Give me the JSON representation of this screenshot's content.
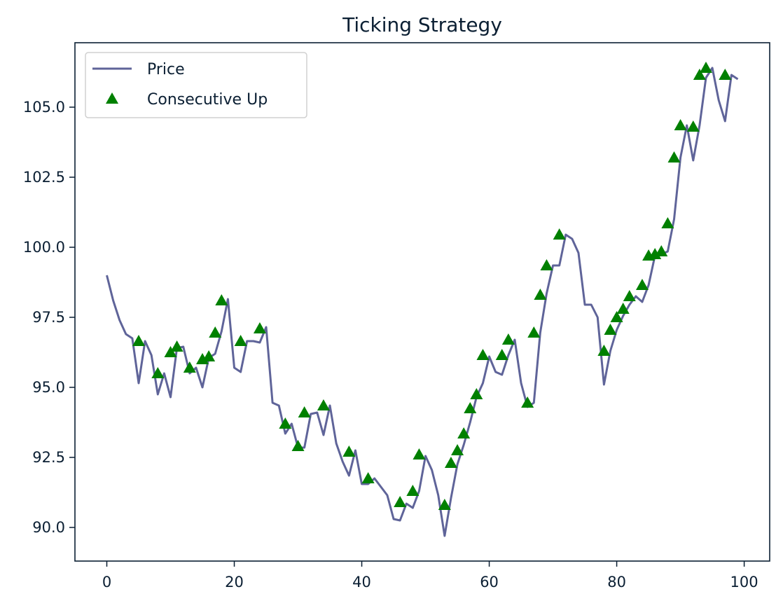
{
  "chart_data": {
    "type": "line",
    "title": "Ticking Strategy",
    "xlabel": "",
    "ylabel": "",
    "xlim": [
      -5,
      104
    ],
    "ylim": [
      88.8,
      107.3
    ],
    "xticks": [
      0,
      20,
      40,
      60,
      80,
      100
    ],
    "yticks": [
      90.0,
      92.5,
      95.0,
      97.5,
      100.0,
      102.5,
      105.0
    ],
    "grid": false,
    "legend_position": "top-left",
    "colors": {
      "price_line": "#5f6499",
      "marker": "#008000",
      "axis": "#0b1f33"
    },
    "series": [
      {
        "name": "Price",
        "type": "line",
        "x": [
          0,
          1,
          2,
          3,
          4,
          5,
          6,
          7,
          8,
          9,
          10,
          11,
          12,
          13,
          14,
          15,
          16,
          17,
          18,
          19,
          20,
          21,
          22,
          23,
          24,
          25,
          26,
          27,
          28,
          29,
          30,
          31,
          32,
          33,
          34,
          35,
          36,
          37,
          38,
          39,
          40,
          41,
          42,
          43,
          44,
          45,
          46,
          47,
          48,
          49,
          50,
          51,
          52,
          53,
          54,
          55,
          56,
          57,
          58,
          59,
          60,
          61,
          62,
          63,
          64,
          65,
          66,
          67,
          68,
          69,
          70,
          71,
          72,
          73,
          74,
          75,
          76,
          77,
          78,
          79,
          80,
          81,
          82,
          83,
          84,
          85,
          86,
          87,
          88,
          89,
          90,
          91,
          92,
          93,
          94,
          95,
          96,
          97,
          98,
          99
        ],
        "values": [
          99.0,
          98.1,
          97.4,
          96.9,
          96.75,
          95.15,
          96.65,
          96.15,
          94.75,
          95.5,
          94.65,
          96.4,
          96.45,
          95.5,
          95.7,
          95.0,
          96.05,
          96.2,
          97.0,
          98.15,
          95.7,
          95.55,
          96.65,
          96.65,
          96.6,
          97.15,
          94.45,
          94.35,
          93.35,
          93.7,
          92.85,
          92.85,
          94.05,
          94.1,
          93.3,
          94.35,
          93.0,
          92.35,
          91.85,
          92.75,
          91.55,
          91.55,
          91.75,
          91.45,
          91.15,
          90.3,
          90.25,
          90.85,
          90.7,
          91.3,
          92.55,
          92.05,
          91.15,
          89.7,
          91.05,
          92.25,
          92.95,
          93.75,
          94.65,
          95.15,
          96.1,
          95.55,
          95.45,
          96.15,
          96.7,
          95.15,
          94.3,
          94.45,
          96.95,
          98.35,
          99.35,
          99.35,
          100.45,
          100.3,
          99.8,
          97.95,
          97.95,
          97.5,
          95.1,
          96.3,
          97.05,
          97.55,
          97.95,
          98.25,
          98.05,
          98.65,
          99.7,
          99.75,
          99.85,
          101.0,
          103.2,
          104.35,
          103.1,
          104.35,
          106.05,
          106.4,
          105.25,
          104.5,
          106.15,
          106.0
        ]
      },
      {
        "name": "Consecutive Up",
        "type": "scatter",
        "marker": "triangle-up",
        "x": [
          5,
          8,
          10,
          11,
          13,
          15,
          16,
          17,
          18,
          21,
          24,
          28,
          30,
          31,
          34,
          38,
          41,
          46,
          48,
          49,
          53,
          54,
          55,
          56,
          57,
          58,
          59,
          62,
          63,
          66,
          67,
          68,
          69,
          71,
          78,
          79,
          80,
          81,
          82,
          84,
          85,
          86,
          87,
          88,
          89,
          90,
          92,
          93,
          94,
          97
        ],
        "values": [
          96.65,
          95.5,
          96.25,
          96.45,
          95.7,
          96.0,
          96.1,
          96.95,
          98.1,
          96.65,
          97.1,
          93.7,
          92.9,
          94.1,
          94.35,
          92.7,
          91.75,
          90.9,
          91.3,
          92.6,
          90.8,
          92.3,
          92.75,
          93.35,
          94.25,
          94.75,
          96.15,
          96.15,
          96.7,
          94.45,
          96.95,
          98.3,
          99.35,
          100.45,
          96.3,
          97.05,
          97.5,
          97.8,
          98.25,
          98.65,
          99.7,
          99.75,
          99.85,
          100.85,
          103.2,
          104.35,
          104.3,
          106.15,
          106.4,
          106.15
        ]
      }
    ]
  }
}
